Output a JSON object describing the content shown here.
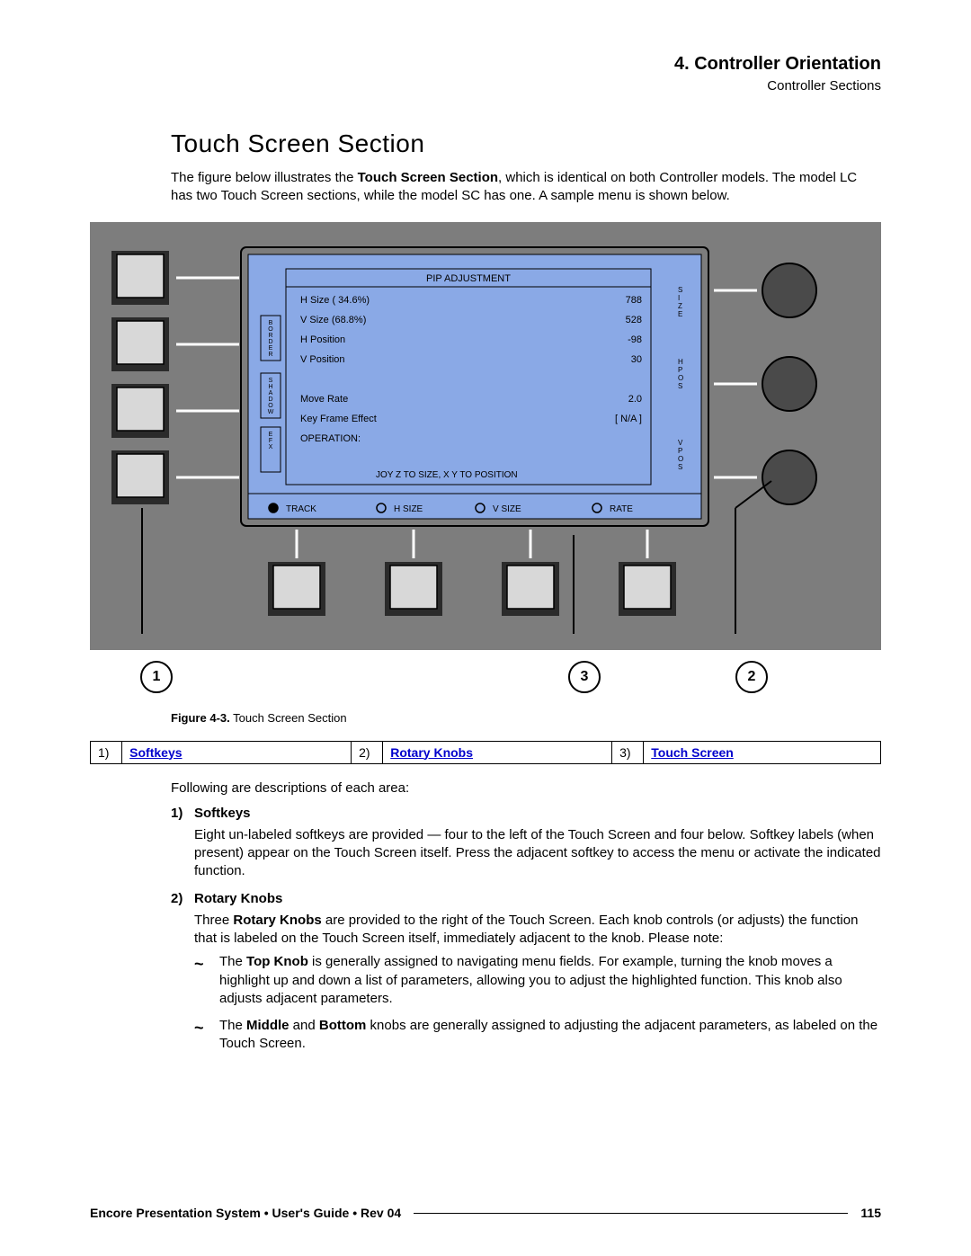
{
  "header": {
    "chapter": "4.  Controller Orientation",
    "subtitle": "Controller Sections"
  },
  "section_title": "Touch Screen Section",
  "intro": {
    "pre": "The figure below illustrates the ",
    "bold": "Touch Screen Section",
    "post": ", which is identical on both Controller models.  The model LC has two Touch Screen sections, while the model SC has one.  A sample menu is shown below."
  },
  "figure": {
    "panel_bg": "#7d7d7d",
    "screen_bg": "#8aa9e6",
    "screen_border": "#000000",
    "title": "PIP ADJUSTMENT",
    "rows": [
      {
        "label": "H Size ( 34.6%)",
        "value": "788"
      },
      {
        "label": "V Size (68.8%)",
        "value": "528"
      },
      {
        "label": "H Position",
        "value": "-98"
      },
      {
        "label": "V Position",
        "value": "30"
      },
      {
        "label": "",
        "value": ""
      },
      {
        "label": "Move Rate",
        "value": "2.0"
      },
      {
        "label": "Key Frame Effect",
        "value": "[ N/A ]"
      },
      {
        "label": "OPERATION:",
        "value": ""
      }
    ],
    "footer_line": "JOY Z TO SIZE, X Y TO POSITION",
    "bottom_options": [
      "TRACK",
      "H SIZE",
      "V SIZE",
      "RATE"
    ],
    "side_tabs": [
      "BORDER",
      "SHADOW",
      "EFX"
    ],
    "right_labels": [
      "SIZE",
      "H POS",
      "V POS"
    ],
    "callouts": {
      "c1": "1",
      "c2": "2",
      "c3": "3"
    }
  },
  "caption": {
    "label": "Figure 4-3.",
    "text": "  Touch Screen Section"
  },
  "legend": {
    "c1n": "1)",
    "c1t": "Softkeys",
    "c2n": "2)",
    "c2t": "Rotary Knobs",
    "c3n": "3)",
    "c3t": "Touch Screen"
  },
  "following": "Following are descriptions of each area:",
  "items": {
    "i1": {
      "num": "1)",
      "title": "Softkeys",
      "body": "Eight un-labeled softkeys are provided — four to the left of the Touch Screen and four below.  Softkey labels (when present) appear on the Touch Screen itself.  Press the adjacent softkey to access the menu or activate the indicated function."
    },
    "i2": {
      "num": "2)",
      "title": "Rotary Knobs",
      "body_pre": "Three ",
      "body_bold": "Rotary Knobs",
      "body_post": " are provided to the right of the Touch Screen.  Each knob controls (or adjusts) the function that is labeled on the Touch Screen itself, immediately adjacent to the knob.  Please note:",
      "bul1_pre": "The ",
      "bul1_b1": "Top Knob",
      "bul1_post": " is generally assigned to navigating menu fields.  For example, turning the knob moves a highlight up and down a list of parameters, allowing you to adjust the highlighted function.  This knob also adjusts adjacent parameters.",
      "bul2_pre": "The ",
      "bul2_b1": "Middle",
      "bul2_mid": " and ",
      "bul2_b2": "Bottom",
      "bul2_post": " knobs are generally assigned to adjusting the adjacent parameters, as labeled on the Touch Screen."
    }
  },
  "footer": {
    "title": "Encore Presentation System  •  User's Guide  •  Rev 04",
    "page": "115"
  },
  "style": {
    "softkey_fill": "#d8d8d8",
    "softkey_stroke": "#000000",
    "knob_fill": "#4a4a4a",
    "row_font": 11,
    "title_font": 11
  }
}
